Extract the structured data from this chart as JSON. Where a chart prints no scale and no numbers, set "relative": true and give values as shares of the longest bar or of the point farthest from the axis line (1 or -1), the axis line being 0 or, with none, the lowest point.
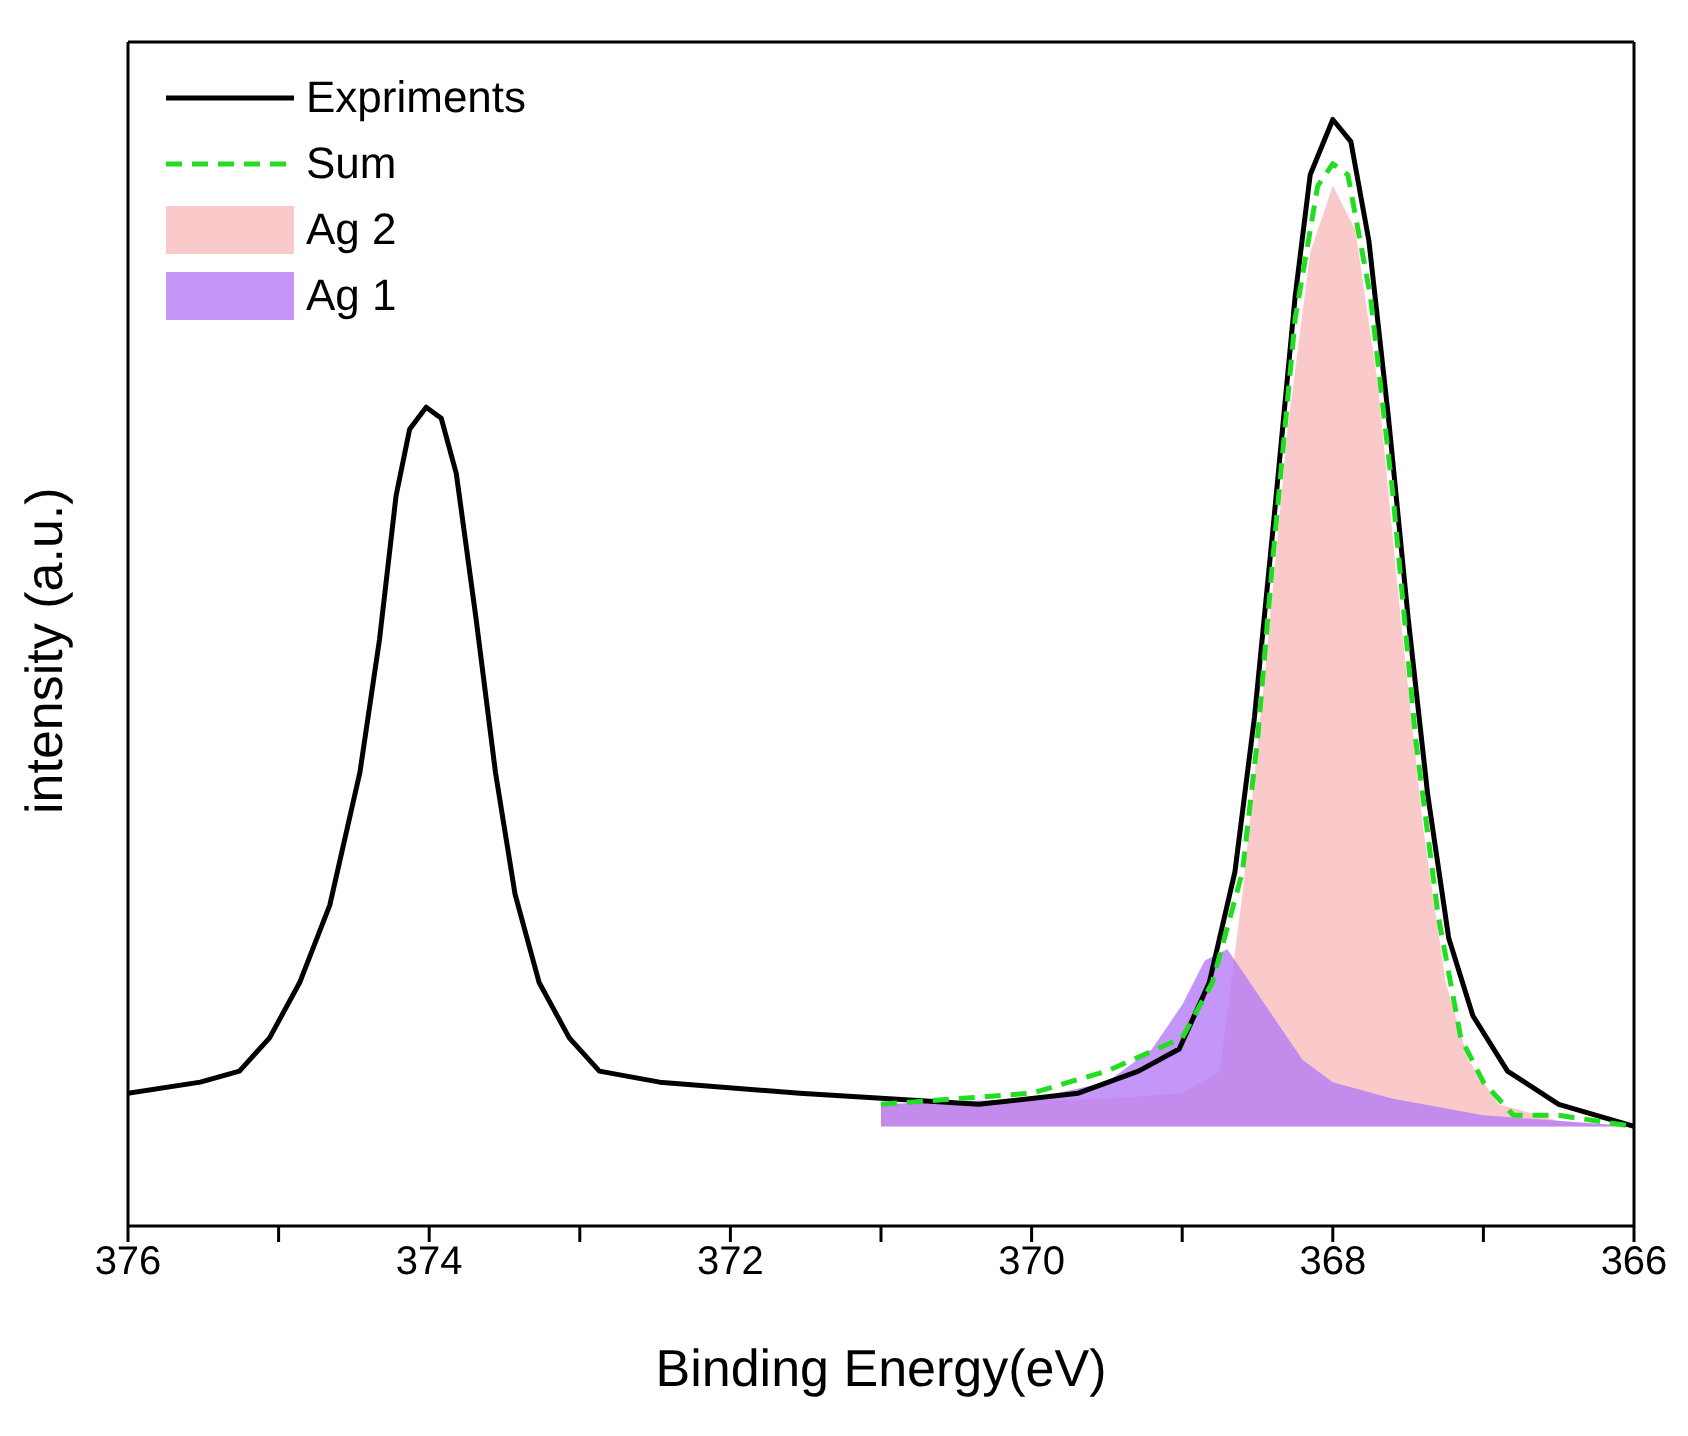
{
  "chart_data": {
    "type": "line",
    "xlabel": "Binding Energy(eV)",
    "ylabel": "intensity (a.u.)",
    "relative": true,
    "xlim": [
      376,
      366
    ],
    "xticks": [
      376,
      {
        "value": 375,
        "label": null
      },
      374,
      {
        "value": 373,
        "label": null
      },
      372,
      {
        "value": 371,
        "label": null
      },
      370,
      {
        "value": 369,
        "label": null
      },
      368,
      {
        "value": 367,
        "label": null
      },
      366
    ],
    "legend": "top left",
    "grid": false,
    "series": [
      {
        "name": "Expriments",
        "color": "#000000",
        "line_style": "solid",
        "x": [
          376,
          375.52,
          375.26,
          375.06,
          374.86,
          374.66,
          374.46,
          374.33,
          374.22,
          374.13,
          374.02,
          373.92,
          373.82,
          373.69,
          373.56,
          373.43,
          373.27,
          373.07,
          372.87,
          372.47,
          371.54,
          370.35,
          369.69,
          369.29,
          369.02,
          368.82,
          368.65,
          368.52,
          368.39,
          368.25,
          368.15,
          368.0,
          367.88,
          367.76,
          367.63,
          367.5,
          367.37,
          367.23,
          367.07,
          366.84,
          366.5,
          366.0
        ],
        "values": [
          0.12,
          0.13,
          0.14,
          0.17,
          0.22,
          0.29,
          0.41,
          0.53,
          0.66,
          0.72,
          0.74,
          0.73,
          0.68,
          0.55,
          0.41,
          0.3,
          0.22,
          0.17,
          0.14,
          0.13,
          0.12,
          0.11,
          0.12,
          0.14,
          0.16,
          0.22,
          0.32,
          0.46,
          0.64,
          0.84,
          0.95,
          1.0,
          0.98,
          0.89,
          0.73,
          0.55,
          0.39,
          0.26,
          0.19,
          0.14,
          0.11,
          0.09
        ]
      },
      {
        "name": "Sum",
        "color": "#22dd22",
        "line_style": "dashed",
        "x": [
          371,
          370,
          369.5,
          369.0,
          368.8,
          368.6,
          368.5,
          368.4,
          368.25,
          368.1,
          368.0,
          367.9,
          367.75,
          367.6,
          367.45,
          367.3,
          367.15,
          367.0,
          366.8,
          366.5,
          366.0
        ],
        "values": [
          0.11,
          0.12,
          0.14,
          0.17,
          0.22,
          0.32,
          0.44,
          0.6,
          0.82,
          0.94,
          0.96,
          0.95,
          0.84,
          0.66,
          0.44,
          0.28,
          0.17,
          0.13,
          0.1,
          0.1,
          0.09
        ]
      },
      {
        "name": "Ag 2",
        "type": "area",
        "color": "#f9bcbc",
        "x": [
          371,
          369.5,
          369.0,
          368.75,
          368.6,
          368.45,
          368.3,
          368.15,
          368.0,
          367.85,
          367.7,
          367.55,
          367.4,
          367.25,
          367.1,
          366.9,
          366.5,
          366.0
        ],
        "values": [
          0.11,
          0.115,
          0.12,
          0.14,
          0.3,
          0.5,
          0.72,
          0.88,
          0.94,
          0.9,
          0.76,
          0.55,
          0.36,
          0.22,
          0.15,
          0.11,
          0.095,
          0.09
        ]
      },
      {
        "name": "Ag 1",
        "type": "area",
        "color": "#b57cf5",
        "x": [
          371,
          370,
          369.5,
          369.2,
          369.0,
          368.85,
          368.7,
          368.55,
          368.4,
          368.2,
          368.0,
          367.6,
          367.0,
          366.0
        ],
        "values": [
          0.11,
          0.115,
          0.13,
          0.16,
          0.2,
          0.24,
          0.25,
          0.22,
          0.19,
          0.15,
          0.13,
          0.115,
          0.1,
          0.09
        ]
      }
    ]
  }
}
